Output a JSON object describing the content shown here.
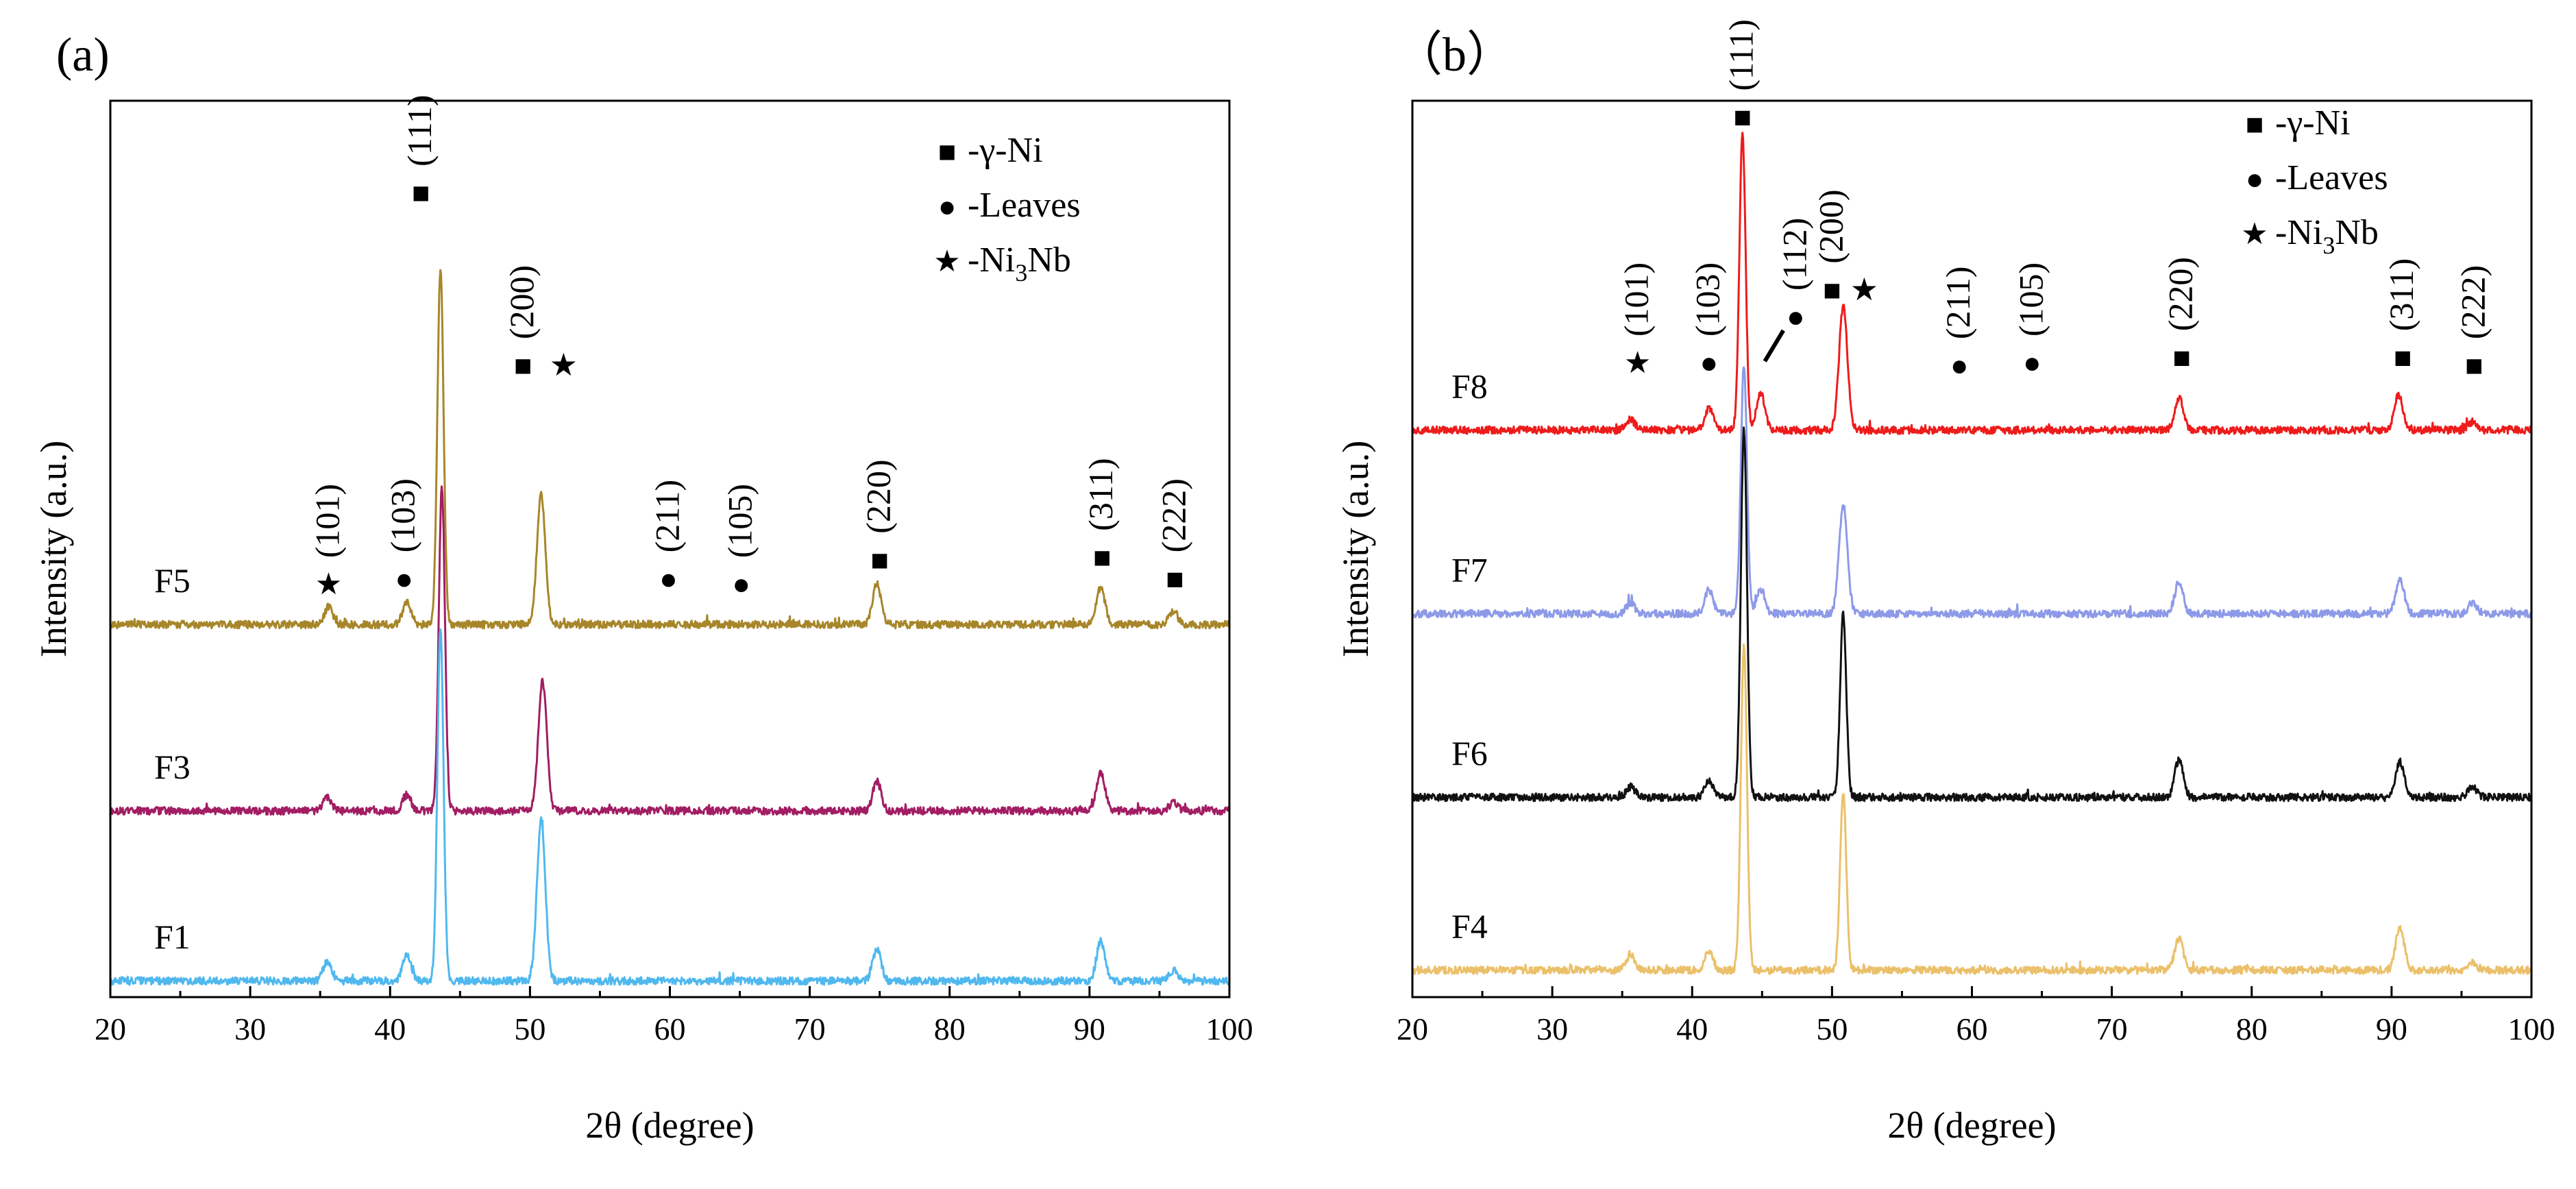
{
  "chart_data": [
    {
      "type": "line",
      "panel_label": "(a)",
      "xlabel": "2θ (degree)",
      "ylabel": "Intensity (a.u.)",
      "xlim": [
        20,
        100
      ],
      "xticks": [
        "20",
        "30",
        "40",
        "50",
        "60",
        "70",
        "80",
        "90",
        "100"
      ],
      "series": [
        {
          "name": "F5",
          "color": "#A7862A",
          "offset": 0.69,
          "peaks": [
            [
              35.6,
              0.032
            ],
            [
              41.2,
              0.04
            ],
            [
              43.6,
              0.66
            ],
            [
              50.8,
              0.24
            ],
            [
              74.8,
              0.075
            ],
            [
              90.8,
              0.07
            ],
            [
              96.0,
              0.025
            ]
          ]
        },
        {
          "name": "F3",
          "color": "#A21D63",
          "offset": 0.345,
          "peaks": [
            [
              35.5,
              0.025
            ],
            [
              41.2,
              0.03
            ],
            [
              43.7,
              0.6
            ],
            [
              50.9,
              0.24
            ],
            [
              74.8,
              0.055
            ],
            [
              90.8,
              0.07
            ],
            [
              96.0,
              0.015
            ]
          ]
        },
        {
          "name": "F1",
          "color": "#4FB8EE",
          "offset": 0.03,
          "peaks": [
            [
              35.5,
              0.035
            ],
            [
              41.2,
              0.05
            ],
            [
              43.6,
              0.65
            ],
            [
              50.8,
              0.3
            ],
            [
              74.8,
              0.06
            ],
            [
              90.8,
              0.075
            ],
            [
              96.0,
              0.02
            ]
          ]
        }
      ],
      "annotations": [
        {
          "hkl": "(101)",
          "symbol": "★",
          "x": 35.6,
          "y": 0.765
        },
        {
          "hkl": "(103)",
          "symbol": "●",
          "x": 41.0,
          "y": 0.775
        },
        {
          "hkl": "(111)",
          "symbol": "■",
          "x": 42.2,
          "y": 1.49
        },
        {
          "hkl": "(200)",
          "symbol": "■",
          "x": 49.5,
          "y": 1.17,
          "extra_symbol": "★",
          "extra_x": 52.4
        },
        {
          "hkl": "(211)",
          "symbol": "●",
          "x": 59.9,
          "y": 0.775
        },
        {
          "hkl": "(105)",
          "symbol": "●",
          "x": 65.1,
          "y": 0.765
        },
        {
          "hkl": "(220)",
          "symbol": "■",
          "x": 75.0,
          "y": 0.81
        },
        {
          "hkl": "(311)",
          "symbol": "■",
          "x": 90.9,
          "y": 0.815
        },
        {
          "hkl": "(222)",
          "symbol": "■",
          "x": 96.1,
          "y": 0.775
        }
      ],
      "legend": [
        {
          "symbol": "■",
          "label": "-γ-Ni"
        },
        {
          "symbol": "●",
          "label": "-Leaves"
        },
        {
          "symbol": "★",
          "label": "-Ni",
          "sub": "3",
          "after": "Nb"
        }
      ]
    },
    {
      "type": "line",
      "panel_label": "（b）",
      "xlabel": "2θ (degree)",
      "ylabel": "Intensity (a.u.)",
      "xlim": [
        20,
        100
      ],
      "xticks": [
        "20",
        "30",
        "40",
        "50",
        "60",
        "70",
        "80",
        "90",
        "100"
      ],
      "series": [
        {
          "name": "F8",
          "color": "#EE1B1B",
          "offset": 1.05,
          "peaks": [
            [
              35.6,
              0.02
            ],
            [
              41.2,
              0.04
            ],
            [
              43.6,
              0.55
            ],
            [
              44.9,
              0.07
            ],
            [
              50.8,
              0.23
            ],
            [
              74.8,
              0.06
            ],
            [
              90.5,
              0.065
            ],
            [
              95.8,
              0.015
            ]
          ]
        },
        {
          "name": "F7",
          "color": "#8D9AE8",
          "offset": 0.71,
          "peaks": [
            [
              35.6,
              0.02
            ],
            [
              41.2,
              0.045
            ],
            [
              43.7,
              0.46
            ],
            [
              44.9,
              0.045
            ],
            [
              50.8,
              0.2
            ],
            [
              74.8,
              0.06
            ],
            [
              90.6,
              0.065
            ],
            [
              95.8,
              0.02
            ]
          ]
        },
        {
          "name": "F6",
          "color": "#111111",
          "offset": 0.37,
          "peaks": [
            [
              35.6,
              0.02
            ],
            [
              41.2,
              0.03
            ],
            [
              43.7,
              0.68
            ],
            [
              50.8,
              0.34
            ],
            [
              74.8,
              0.07
            ],
            [
              90.6,
              0.065
            ],
            [
              95.8,
              0.02
            ]
          ]
        },
        {
          "name": "F4",
          "color": "#EBC06A",
          "offset": 0.05,
          "peaks": [
            [
              35.6,
              0.03
            ],
            [
              41.2,
              0.035
            ],
            [
              43.7,
              0.6
            ],
            [
              50.8,
              0.33
            ],
            [
              74.8,
              0.06
            ],
            [
              90.6,
              0.08
            ],
            [
              95.8,
              0.015
            ]
          ]
        }
      ],
      "annotations": [
        {
          "hkl": "(101)",
          "symbol": "★",
          "x": 36.1,
          "y": 1.175
        },
        {
          "hkl": "(103)",
          "symbol": "●",
          "x": 41.2,
          "y": 1.175
        },
        {
          "hkl": "(111)",
          "symbol": "■",
          "x": 43.6,
          "y": 1.63
        },
        {
          "hkl": "(112)",
          "symbol": "●",
          "x": 47.4,
          "y": 1.26,
          "leader": true
        },
        {
          "hkl": "(200)",
          "symbol": "■",
          "x": 50.0,
          "y": 1.31,
          "extra_symbol": "★",
          "extra_x": 52.3
        },
        {
          "hkl": "(211)",
          "symbol": "●",
          "x": 59.1,
          "y": 1.17
        },
        {
          "hkl": "(105)",
          "symbol": "●",
          "x": 64.3,
          "y": 1.175
        },
        {
          "hkl": "(220)",
          "symbol": "■",
          "x": 75.0,
          "y": 1.185
        },
        {
          "hkl": "(311)",
          "symbol": "■",
          "x": 90.8,
          "y": 1.185
        },
        {
          "hkl": "(222)",
          "symbol": "■",
          "x": 95.9,
          "y": 1.17
        }
      ],
      "legend": [
        {
          "symbol": "■",
          "label": "-γ-Ni"
        },
        {
          "symbol": "●",
          "label": "-Leaves"
        },
        {
          "symbol": "★",
          "label": "-Ni",
          "sub": "3",
          "after": "Nb"
        }
      ]
    }
  ]
}
